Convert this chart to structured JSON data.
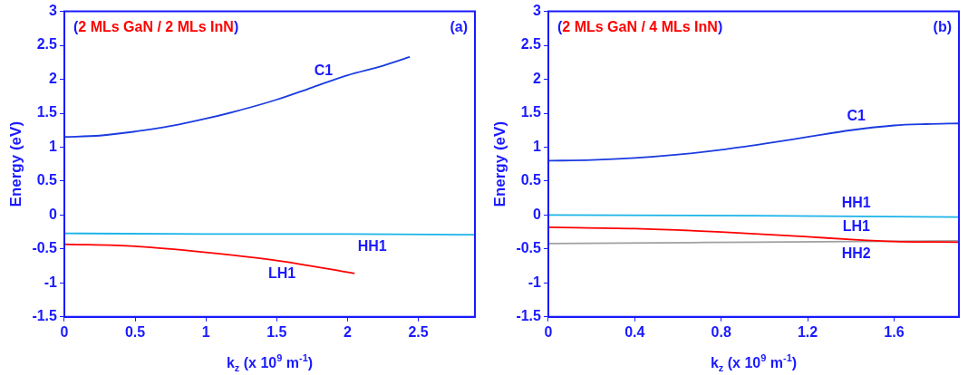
{
  "chart_data": [
    {
      "type": "line",
      "title": "(2 MLs GaN / 2 MLs InN)",
      "xlabel": "k$_{z}$ (x 10$^{9}$ m$^{-1}$)",
      "ylabel": "Energy (eV)",
      "xlim": [
        0,
        2.9
      ],
      "xticks": [
        0,
        0.5,
        1,
        1.5,
        2,
        2.5
      ],
      "ylim": [
        -1.5,
        3
      ],
      "yticks": [
        -1.5,
        -1,
        -0.5,
        0,
        0.5,
        1,
        1.5,
        2,
        2.5,
        3
      ],
      "grid": false,
      "legend": false,
      "marker": "none",
      "line_style": "solid",
      "series": [
        {
          "name": "C1",
          "color": "#1a3be0",
          "x": [
            0,
            0.25,
            0.5,
            0.75,
            1,
            1.25,
            1.5,
            1.75,
            2,
            2.25,
            2.44
          ],
          "values": [
            1.15,
            1.17,
            1.23,
            1.31,
            1.42,
            1.55,
            1.7,
            1.88,
            2.06,
            2.2,
            2.33
          ]
        },
        {
          "name": "HH1",
          "color": "#1ab4e8",
          "x": [
            0,
            1,
            2,
            2.9
          ],
          "values": [
            -0.27,
            -0.28,
            -0.28,
            -0.29
          ]
        },
        {
          "name": "LH1",
          "color": "#ff0000",
          "x": [
            0,
            0.5,
            1,
            1.5,
            2.05
          ],
          "values": [
            -0.43,
            -0.46,
            -0.55,
            -0.67,
            -0.86
          ]
        }
      ],
      "annotations": [
        "(a)"
      ]
    },
    {
      "type": "line",
      "title": "(2 MLs GaN / 4 MLs InN)",
      "xlabel": "k$_{z}$ (x 10$^{9}$ m$^{-1}$)",
      "ylabel": "Energy (eV)",
      "xlim": [
        0,
        1.9
      ],
      "xticks": [
        0,
        0.4,
        0.8,
        1.2,
        1.6
      ],
      "ylim": [
        -1.5,
        3
      ],
      "yticks": [
        -1.5,
        -1,
        -0.5,
        0,
        0.5,
        1,
        1.5,
        2,
        2.5,
        3
      ],
      "grid": false,
      "legend": false,
      "marker": "none",
      "line_style": "solid",
      "series": [
        {
          "name": "C1",
          "color": "#1a3be0",
          "x": [
            0,
            0.2,
            0.4,
            0.6,
            0.8,
            1,
            1.2,
            1.4,
            1.6,
            1.75,
            1.9
          ],
          "values": [
            0.8,
            0.81,
            0.84,
            0.89,
            0.96,
            1.05,
            1.15,
            1.25,
            1.32,
            1.34,
            1.35
          ]
        },
        {
          "name": "HH1",
          "color": "#1ab4e8",
          "x": [
            0,
            0.95,
            1.9
          ],
          "values": [
            0,
            -0.01,
            -0.03
          ]
        },
        {
          "name": "LH1",
          "color": "#ff0000",
          "x": [
            0,
            0.4,
            0.8,
            1.2,
            1.4,
            1.6,
            1.9
          ],
          "values": [
            -0.18,
            -0.2,
            -0.25,
            -0.32,
            -0.36,
            -0.39,
            -0.4
          ]
        },
        {
          "name": "HH2",
          "color": "#a0a0a0",
          "x": [
            0,
            0.95,
            1.9
          ],
          "values": [
            -0.42,
            -0.4,
            -0.38
          ]
        }
      ],
      "annotations": [
        "(b)"
      ]
    }
  ]
}
